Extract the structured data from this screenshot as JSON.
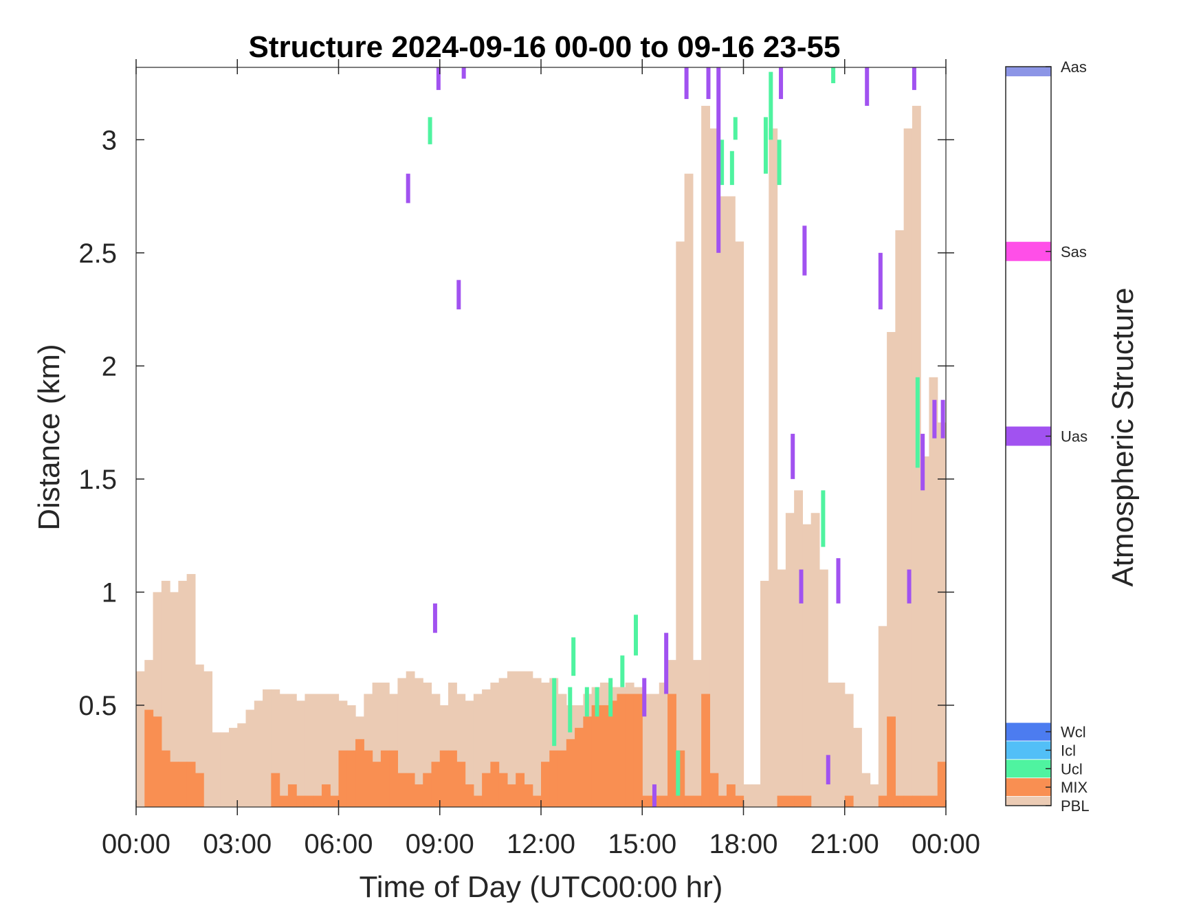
{
  "chart_data": {
    "type": "heatmap",
    "title": "Structure 2024-09-16 00-00 to 09-16 23-55",
    "xlabel": "Time of Day (UTC00:00 hr)",
    "ylabel": "Distance (km)",
    "xlim": [
      0,
      24
    ],
    "ylim": [
      0.05,
      3.32
    ],
    "grid": false,
    "x_ticks": [
      0,
      3,
      6,
      9,
      12,
      15,
      18,
      21,
      24
    ],
    "x_tick_labels": [
      "00:00",
      "03:00",
      "06:00",
      "09:00",
      "12:00",
      "15:00",
      "18:00",
      "21:00",
      "00:00"
    ],
    "y_ticks": [
      0.5,
      1,
      1.5,
      2,
      2.5,
      3
    ],
    "y_tick_labels": [
      "0.5",
      "1",
      "1.5",
      "2",
      "2.5",
      "3"
    ],
    "bin_width_hours": 0.0833,
    "colorbar": {
      "label": "Atmospheric Structure",
      "classes": [
        {
          "name": "PBL",
          "color": "#EBCBB4"
        },
        {
          "name": "MIX",
          "color": "#F98F52"
        },
        {
          "name": "Ucl",
          "color": "#4FF3A0"
        },
        {
          "name": "Icl",
          "color": "#52BFF7"
        },
        {
          "name": "Wcl",
          "color": "#4C7CF0"
        },
        {
          "name": "Uas",
          "color": "#A152F0"
        },
        {
          "name": "Sas",
          "color": "#FF4FE8"
        },
        {
          "name": "Aas",
          "color": "#8C95E6"
        }
      ]
    },
    "series": [
      {
        "name": "PBL",
        "x": [
          0.0,
          0.25,
          0.5,
          0.75,
          1.0,
          1.25,
          1.5,
          1.75,
          2.0,
          2.25,
          2.5,
          2.75,
          3.0,
          3.25,
          3.5,
          3.75,
          4.0,
          4.25,
          4.5,
          4.75,
          5.0,
          5.25,
          5.5,
          5.75,
          6.0,
          6.25,
          6.5,
          6.75,
          7.0,
          7.25,
          7.5,
          7.75,
          8.0,
          8.25,
          8.5,
          8.75,
          9.0,
          9.25,
          9.5,
          9.75,
          10.0,
          10.25,
          10.5,
          10.75,
          11.0,
          11.25,
          11.5,
          11.75,
          12.0,
          12.25,
          12.5,
          12.75,
          13.0,
          13.25,
          13.5,
          13.75,
          14.0,
          14.25,
          14.5,
          14.75,
          15.0,
          15.25,
          15.5,
          15.75,
          16.0,
          16.25,
          16.5,
          16.75,
          17.0,
          17.25,
          17.5,
          17.75,
          18.0,
          18.25,
          18.5,
          18.75,
          19.0,
          19.25,
          19.5,
          19.75,
          20.0,
          20.25,
          20.5,
          20.75,
          21.0,
          21.25,
          21.5,
          21.75,
          22.0,
          22.25,
          22.5,
          22.75,
          23.0,
          23.25,
          23.5,
          23.75
        ],
        "y": [
          0.65,
          0.7,
          1.0,
          1.05,
          1.0,
          1.05,
          1.08,
          0.68,
          0.65,
          0.38,
          0.38,
          0.4,
          0.42,
          0.48,
          0.52,
          0.57,
          0.57,
          0.55,
          0.55,
          0.52,
          0.55,
          0.55,
          0.55,
          0.55,
          0.52,
          0.5,
          0.45,
          0.55,
          0.6,
          0.6,
          0.55,
          0.62,
          0.65,
          0.62,
          0.6,
          0.55,
          0.5,
          0.6,
          0.55,
          0.52,
          0.55,
          0.57,
          0.6,
          0.62,
          0.65,
          0.65,
          0.65,
          0.62,
          0.6,
          0.62,
          0.55,
          0.5,
          0.5,
          0.55,
          0.58,
          0.6,
          0.58,
          0.58,
          0.6,
          0.58,
          0.55,
          0.55,
          0.6,
          0.7,
          2.55,
          2.85,
          0.7,
          3.15,
          3.05,
          2.75,
          2.75,
          2.55,
          0.15,
          0.15,
          1.05,
          3.05,
          1.1,
          1.35,
          1.45,
          1.3,
          1.35,
          1.1,
          0.6,
          0.6,
          0.55,
          0.4,
          0.2,
          0.15,
          0.85,
          2.15,
          2.6,
          3.05,
          3.15,
          1.6,
          1.95,
          1.75
        ]
      },
      {
        "name": "MIX",
        "x": [
          0.0,
          0.25,
          0.5,
          0.75,
          1.0,
          1.25,
          1.5,
          1.75,
          2.0,
          2.25,
          2.5,
          2.75,
          3.0,
          3.25,
          3.5,
          3.75,
          4.0,
          4.25,
          4.5,
          4.75,
          5.0,
          5.25,
          5.5,
          5.75,
          6.0,
          6.25,
          6.5,
          6.75,
          7.0,
          7.25,
          7.5,
          7.75,
          8.0,
          8.25,
          8.5,
          8.75,
          9.0,
          9.25,
          9.5,
          9.75,
          10.0,
          10.25,
          10.5,
          10.75,
          11.0,
          11.25,
          11.5,
          11.75,
          12.0,
          12.25,
          12.5,
          12.75,
          13.0,
          13.25,
          13.5,
          13.75,
          14.0,
          14.25,
          14.5,
          14.75,
          15.0,
          15.25,
          15.5,
          15.75,
          16.0,
          16.25,
          16.5,
          16.75,
          17.0,
          17.25,
          17.5,
          17.75,
          18.0,
          18.25,
          18.5,
          18.75,
          19.0,
          19.25,
          19.5,
          19.75,
          20.0,
          20.25,
          20.5,
          20.75,
          21.0,
          21.25,
          21.5,
          21.75,
          22.0,
          22.25,
          22.5,
          22.75,
          23.0,
          23.25,
          23.5,
          23.75
        ],
        "y": [
          0.0,
          0.48,
          0.45,
          0.3,
          0.25,
          0.25,
          0.25,
          0.2,
          0.0,
          0.0,
          0.0,
          0.0,
          0.0,
          0.0,
          0.0,
          0.0,
          0.2,
          0.1,
          0.15,
          0.1,
          0.1,
          0.1,
          0.15,
          0.1,
          0.3,
          0.3,
          0.35,
          0.3,
          0.25,
          0.3,
          0.3,
          0.2,
          0.2,
          0.15,
          0.2,
          0.25,
          0.3,
          0.3,
          0.25,
          0.15,
          0.1,
          0.2,
          0.25,
          0.2,
          0.15,
          0.2,
          0.15,
          0.1,
          0.25,
          0.3,
          0.3,
          0.35,
          0.4,
          0.45,
          0.5,
          0.5,
          0.52,
          0.55,
          0.55,
          0.55,
          0.1,
          0.1,
          0.1,
          0.55,
          0.3,
          0.1,
          0.1,
          0.55,
          0.2,
          0.1,
          0.15,
          0.1,
          0.0,
          0.0,
          0.0,
          0.0,
          0.1,
          0.1,
          0.1,
          0.1,
          0.0,
          0.0,
          0.0,
          0.0,
          0.1,
          0.0,
          0.0,
          0.0,
          0.1,
          0.45,
          0.1,
          0.1,
          0.1,
          0.1,
          0.1,
          0.25
        ]
      },
      {
        "name": "Ucl",
        "segments": [
          [
            8.65,
            2.98,
            3.1
          ],
          [
            12.33,
            0.32,
            0.62
          ],
          [
            12.8,
            0.38,
            0.58
          ],
          [
            12.9,
            0.63,
            0.8
          ],
          [
            13.3,
            0.45,
            0.58
          ],
          [
            13.6,
            0.45,
            0.58
          ],
          [
            14.0,
            0.45,
            0.62
          ],
          [
            14.35,
            0.58,
            0.72
          ],
          [
            14.75,
            0.72,
            0.9
          ],
          [
            16.0,
            0.1,
            0.3
          ],
          [
            17.3,
            2.8,
            3.0
          ],
          [
            17.6,
            2.8,
            2.95
          ],
          [
            17.7,
            3.0,
            3.1
          ],
          [
            18.6,
            2.85,
            3.1
          ],
          [
            18.75,
            3.0,
            3.3
          ],
          [
            19.0,
            2.8,
            3.0
          ],
          [
            20.3,
            1.2,
            1.45
          ],
          [
            20.6,
            3.25,
            3.32
          ],
          [
            23.1,
            1.55,
            1.95
          ]
        ]
      },
      {
        "name": "Uas",
        "segments": [
          [
            8.0,
            2.72,
            2.85
          ],
          [
            8.9,
            3.22,
            3.32
          ],
          [
            9.5,
            2.25,
            2.38
          ],
          [
            9.65,
            3.27,
            3.32
          ],
          [
            8.8,
            0.82,
            0.95
          ],
          [
            15.0,
            0.45,
            0.62
          ],
          [
            15.3,
            0.05,
            0.15
          ],
          [
            15.65,
            0.55,
            0.82
          ],
          [
            16.25,
            3.18,
            3.32
          ],
          [
            16.9,
            3.18,
            3.32
          ],
          [
            17.2,
            2.5,
            3.32
          ],
          [
            19.05,
            3.18,
            3.32
          ],
          [
            19.4,
            1.5,
            1.7
          ],
          [
            19.75,
            2.4,
            2.62
          ],
          [
            19.65,
            0.95,
            1.1
          ],
          [
            20.45,
            0.15,
            0.28
          ],
          [
            20.75,
            0.95,
            1.15
          ],
          [
            21.6,
            3.15,
            3.32
          ],
          [
            22.0,
            2.25,
            2.5
          ],
          [
            23.0,
            3.22,
            3.32
          ],
          [
            23.25,
            1.45,
            1.7
          ],
          [
            23.6,
            1.68,
            1.85
          ],
          [
            23.85,
            1.68,
            1.85
          ],
          [
            22.85,
            0.95,
            1.1
          ]
        ]
      }
    ]
  }
}
